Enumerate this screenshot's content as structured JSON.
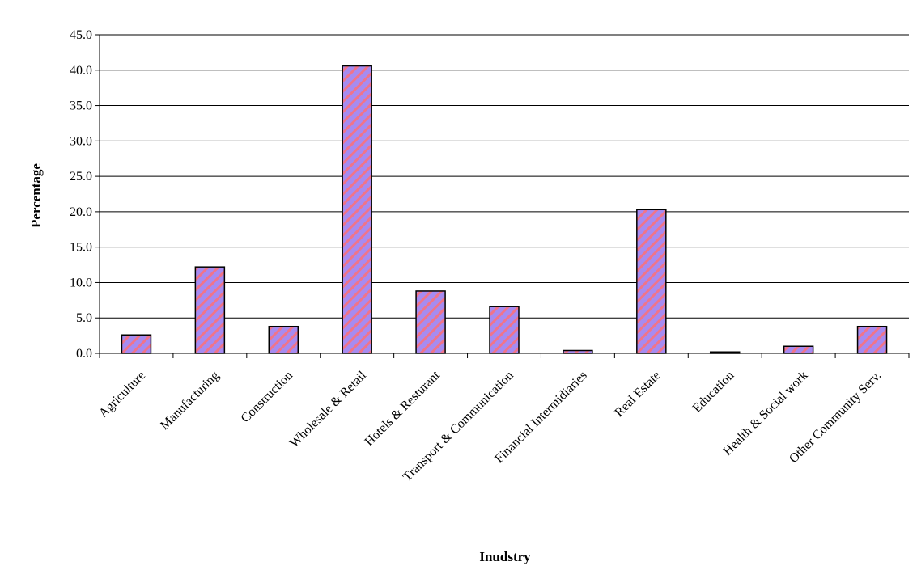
{
  "chart_data": {
    "type": "bar",
    "title": "",
    "xlabel": "Inudstry",
    "ylabel": "Percentage",
    "ylim": [
      0,
      45
    ],
    "yticks": [
      "0.0",
      "5.0",
      "10.0",
      "15.0",
      "20.0",
      "25.0",
      "30.0",
      "35.0",
      "40.0",
      "45.0"
    ],
    "grid": true,
    "legend": "none",
    "categories": [
      "Agriculture",
      "Manufacturing",
      "Construction",
      "Wholesale & Retail",
      "Hotels & Resturant",
      "Transport & Communication",
      "Financial Intermidiaries",
      "Real Estate",
      "Education",
      "Health & Social work",
      "Other Community Serv."
    ],
    "values": [
      2.6,
      12.2,
      3.8,
      40.6,
      8.8,
      6.6,
      0.4,
      20.3,
      0.2,
      1.0,
      3.8
    ],
    "colors": {
      "bar_fill": "#a78bf0",
      "bar_stripe": "#f0748a",
      "bar_edge": "#000000",
      "grid": "#000000"
    }
  }
}
